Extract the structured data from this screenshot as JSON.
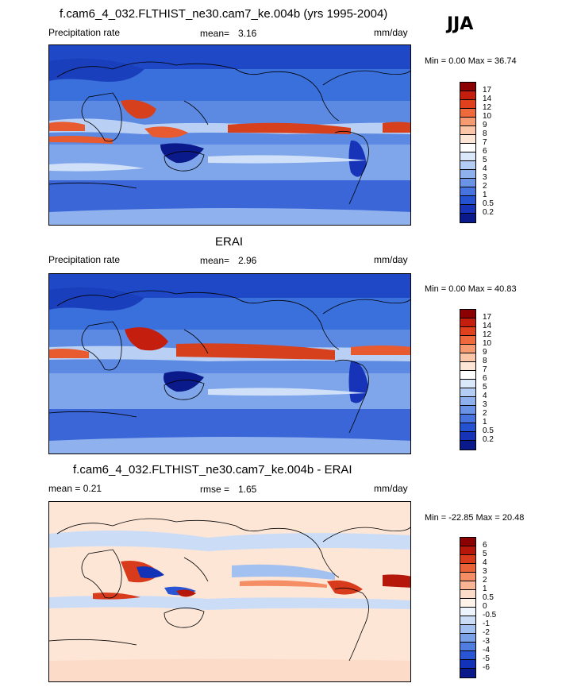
{
  "season": "JJA",
  "panels": [
    {
      "title": "f.cam6_4_032.FLTHIST_ne30.cam7_ke.004b (yrs 1995-2004)",
      "left_label": "Precipitation rate",
      "stat_label": "mean=",
      "stat_value": "3.16",
      "units": "mm/day",
      "minmax": "Min =   0.00 Max =  36.74",
      "colorbar": {
        "labels": [
          "17",
          "14",
          "12",
          "10",
          "9",
          "8",
          "7",
          "6",
          "5",
          "4",
          "3",
          "2",
          "1",
          "0.5",
          "0.2"
        ],
        "colors": [
          "#8b0000",
          "#c41e0e",
          "#e1401c",
          "#ee6a3d",
          "#f69a72",
          "#fbc6a8",
          "#fde6d6",
          "#ffffff",
          "#dbe8fa",
          "#b4cdf4",
          "#8eb1ee",
          "#6a93e6",
          "#4673dd",
          "#2552d1",
          "#1734b8",
          "#0a1a8a"
        ]
      }
    },
    {
      "title": "ERAI",
      "left_label": "Precipitation rate",
      "stat_label": "mean=",
      "stat_value": "2.96",
      "units": "mm/day",
      "minmax": "Min =   0.00 Max =  40.83",
      "colorbar": {
        "labels": [
          "17",
          "14",
          "12",
          "10",
          "9",
          "8",
          "7",
          "6",
          "5",
          "4",
          "3",
          "2",
          "1",
          "0.5",
          "0.2"
        ],
        "colors": [
          "#8b0000",
          "#c41e0e",
          "#e1401c",
          "#ee6a3d",
          "#f69a72",
          "#fbc6a8",
          "#fde6d6",
          "#ffffff",
          "#dbe8fa",
          "#b4cdf4",
          "#8eb1ee",
          "#6a93e6",
          "#4673dd",
          "#2552d1",
          "#1734b8",
          "#0a1a8a"
        ]
      }
    },
    {
      "title": "f.cam6_4_032.FLTHIST_ne30.cam7_ke.004b - ERAI",
      "left_label": "mean =   0.21",
      "stat_label": "rmse =",
      "stat_value": "1.65",
      "units": "mm/day",
      "minmax": "Min = -22.85 Max =  20.48",
      "colorbar": {
        "labels": [
          "6",
          "5",
          "4",
          "3",
          "2",
          "1",
          "0.5",
          "0",
          "-0.5",
          "-1",
          "-2",
          "-3",
          "-4",
          "-5",
          "-6"
        ],
        "colors": [
          "#8b0000",
          "#b5170b",
          "#d83a1c",
          "#ea6238",
          "#f58e65",
          "#f9b594",
          "#fcdcc8",
          "#fff3ea",
          "#eef4fd",
          "#cbdcf7",
          "#a3c1f0",
          "#7aa0e8",
          "#4f7de0",
          "#2955d4",
          "#1233b8",
          "#0a1a8a"
        ]
      }
    }
  ]
}
